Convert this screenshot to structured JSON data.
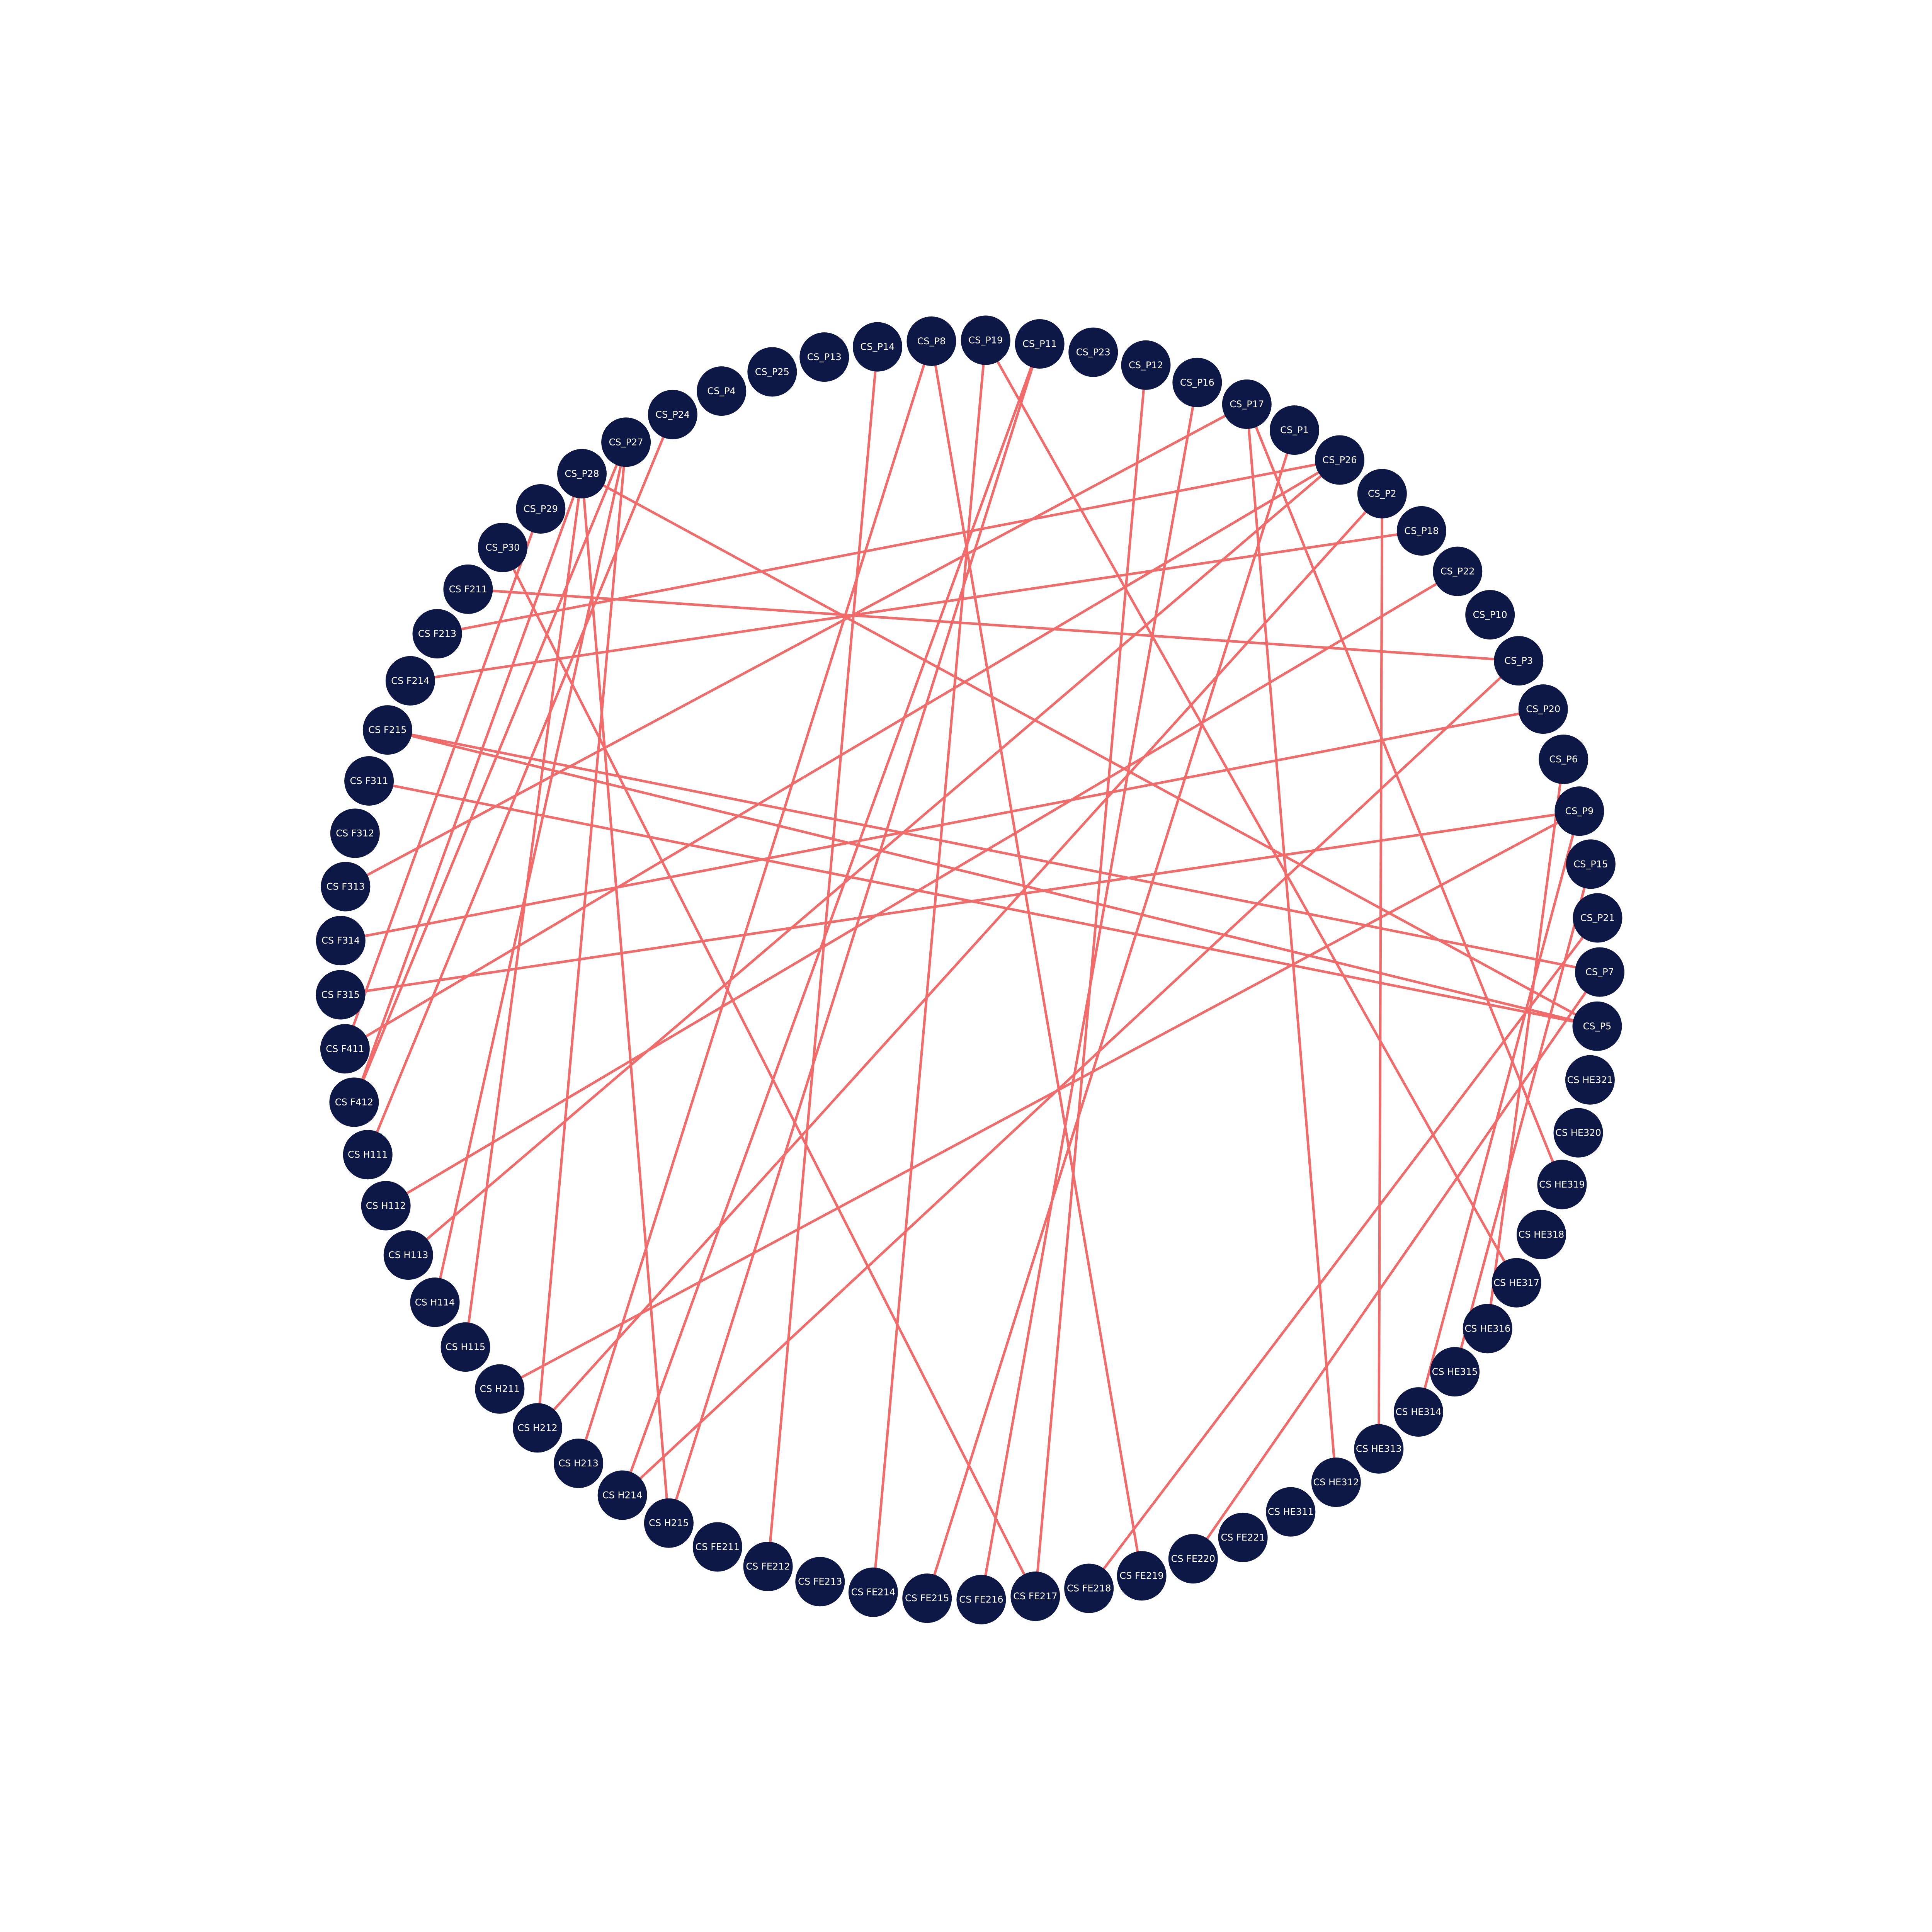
{
  "graph": {
    "node_color": "#0d1847",
    "edge_color": "#f26b6b",
    "label_color": "#ffffff",
    "nodes": [
      "CS_P8",
      "CS_P19",
      "CS_P11",
      "CS_P23",
      "CS_P12",
      "CS_P16",
      "CS_P17",
      "CS_P1",
      "CS_P26",
      "CS_P2",
      "CS_P18",
      "CS_P22",
      "CS_P10",
      "CS_P3",
      "CS_P20",
      "CS_P6",
      "CS_P9",
      "CS_P15",
      "CS_P21",
      "CS_P7",
      "CS_P5",
      "CS HE321",
      "CS HE320",
      "CS HE319",
      "CS HE318",
      "CS HE317",
      "CS HE316",
      "CS HE315",
      "CS HE314",
      "CS HE313",
      "CS HE312",
      "CS HE311",
      "CS FE221",
      "CS FE220",
      "CS FE219",
      "CS FE218",
      "CS FE217",
      "CS FE216",
      "CS FE215",
      "CS FE214",
      "CS FE213",
      "CS FE212",
      "CS FE211",
      "CS H215",
      "CS H214",
      "CS H213",
      "CS H212",
      "CS H211",
      "CS H115",
      "CS H114",
      "CS H113",
      "CS H112",
      "CS H111",
      "CS F412",
      "CS F411",
      "CS F315",
      "CS F314",
      "CS F313",
      "CS F312",
      "CS F311",
      "CS F215",
      "CS F214",
      "CS F213",
      "CS F211",
      "CS_P30",
      "CS_P29",
      "CS_P28",
      "CS_P27",
      "CS_P24",
      "CS_P4",
      "CS_P25",
      "CS_P13",
      "CS_P14"
    ],
    "edges": [
      [
        "CS_P19",
        "CS FE214"
      ],
      [
        "CS_P19",
        "CS HE317"
      ],
      [
        "CS_P11",
        "CS H215"
      ],
      [
        "CS_P11",
        "CS H214"
      ],
      [
        "CS_P8",
        "CS H213"
      ],
      [
        "CS_P8",
        "CS FE219"
      ],
      [
        "CS_P14",
        "CS FE212"
      ],
      [
        "CS_P16",
        "CS FE216"
      ],
      [
        "CS_P17",
        "CS HE319"
      ],
      [
        "CS_P17",
        "CS HE312"
      ],
      [
        "CS_P17",
        "CS F313"
      ],
      [
        "CS_P1",
        "CS FE215"
      ],
      [
        "CS_P26",
        "CS F411"
      ],
      [
        "CS_P26",
        "CS H113"
      ],
      [
        "CS_P26",
        "CS F213"
      ],
      [
        "CS_P2",
        "CS HE313"
      ],
      [
        "CS_P2",
        "CS H212"
      ],
      [
        "CS_P18",
        "CS F214"
      ],
      [
        "CS_P22",
        "CS H112"
      ],
      [
        "CS_P3",
        "CS F211"
      ],
      [
        "CS_P3",
        "CS H214"
      ],
      [
        "CS_P20",
        "CS F314"
      ],
      [
        "CS_P9",
        "CS F315"
      ],
      [
        "CS_P9",
        "CS H211"
      ],
      [
        "CS_P9",
        "CS HE314"
      ],
      [
        "CS_P15",
        "CS HE315"
      ],
      [
        "CS_P21",
        "CS FE218"
      ],
      [
        "CS_P7",
        "CS F215"
      ],
      [
        "CS_P7",
        "CS FE220"
      ],
      [
        "CS_P5",
        "CS F215"
      ],
      [
        "CS_P5",
        "CS F311"
      ],
      [
        "CS_P5",
        "CS_P28"
      ],
      [
        "CS_P6",
        "CS HE316"
      ],
      [
        "CS_P12",
        "CS FE217"
      ],
      [
        "CS_P27",
        "CS H212"
      ],
      [
        "CS_P27",
        "CS H114"
      ],
      [
        "CS_P27",
        "CS F412"
      ],
      [
        "CS_P24",
        "CS H111"
      ],
      [
        "CS_P28",
        "CS H215"
      ],
      [
        "CS_P28",
        "CS F412"
      ],
      [
        "CS_P28",
        "CS H115"
      ],
      [
        "CS_P29",
        "CS F411"
      ],
      [
        "CS_P30",
        "CS FE217"
      ]
    ]
  }
}
